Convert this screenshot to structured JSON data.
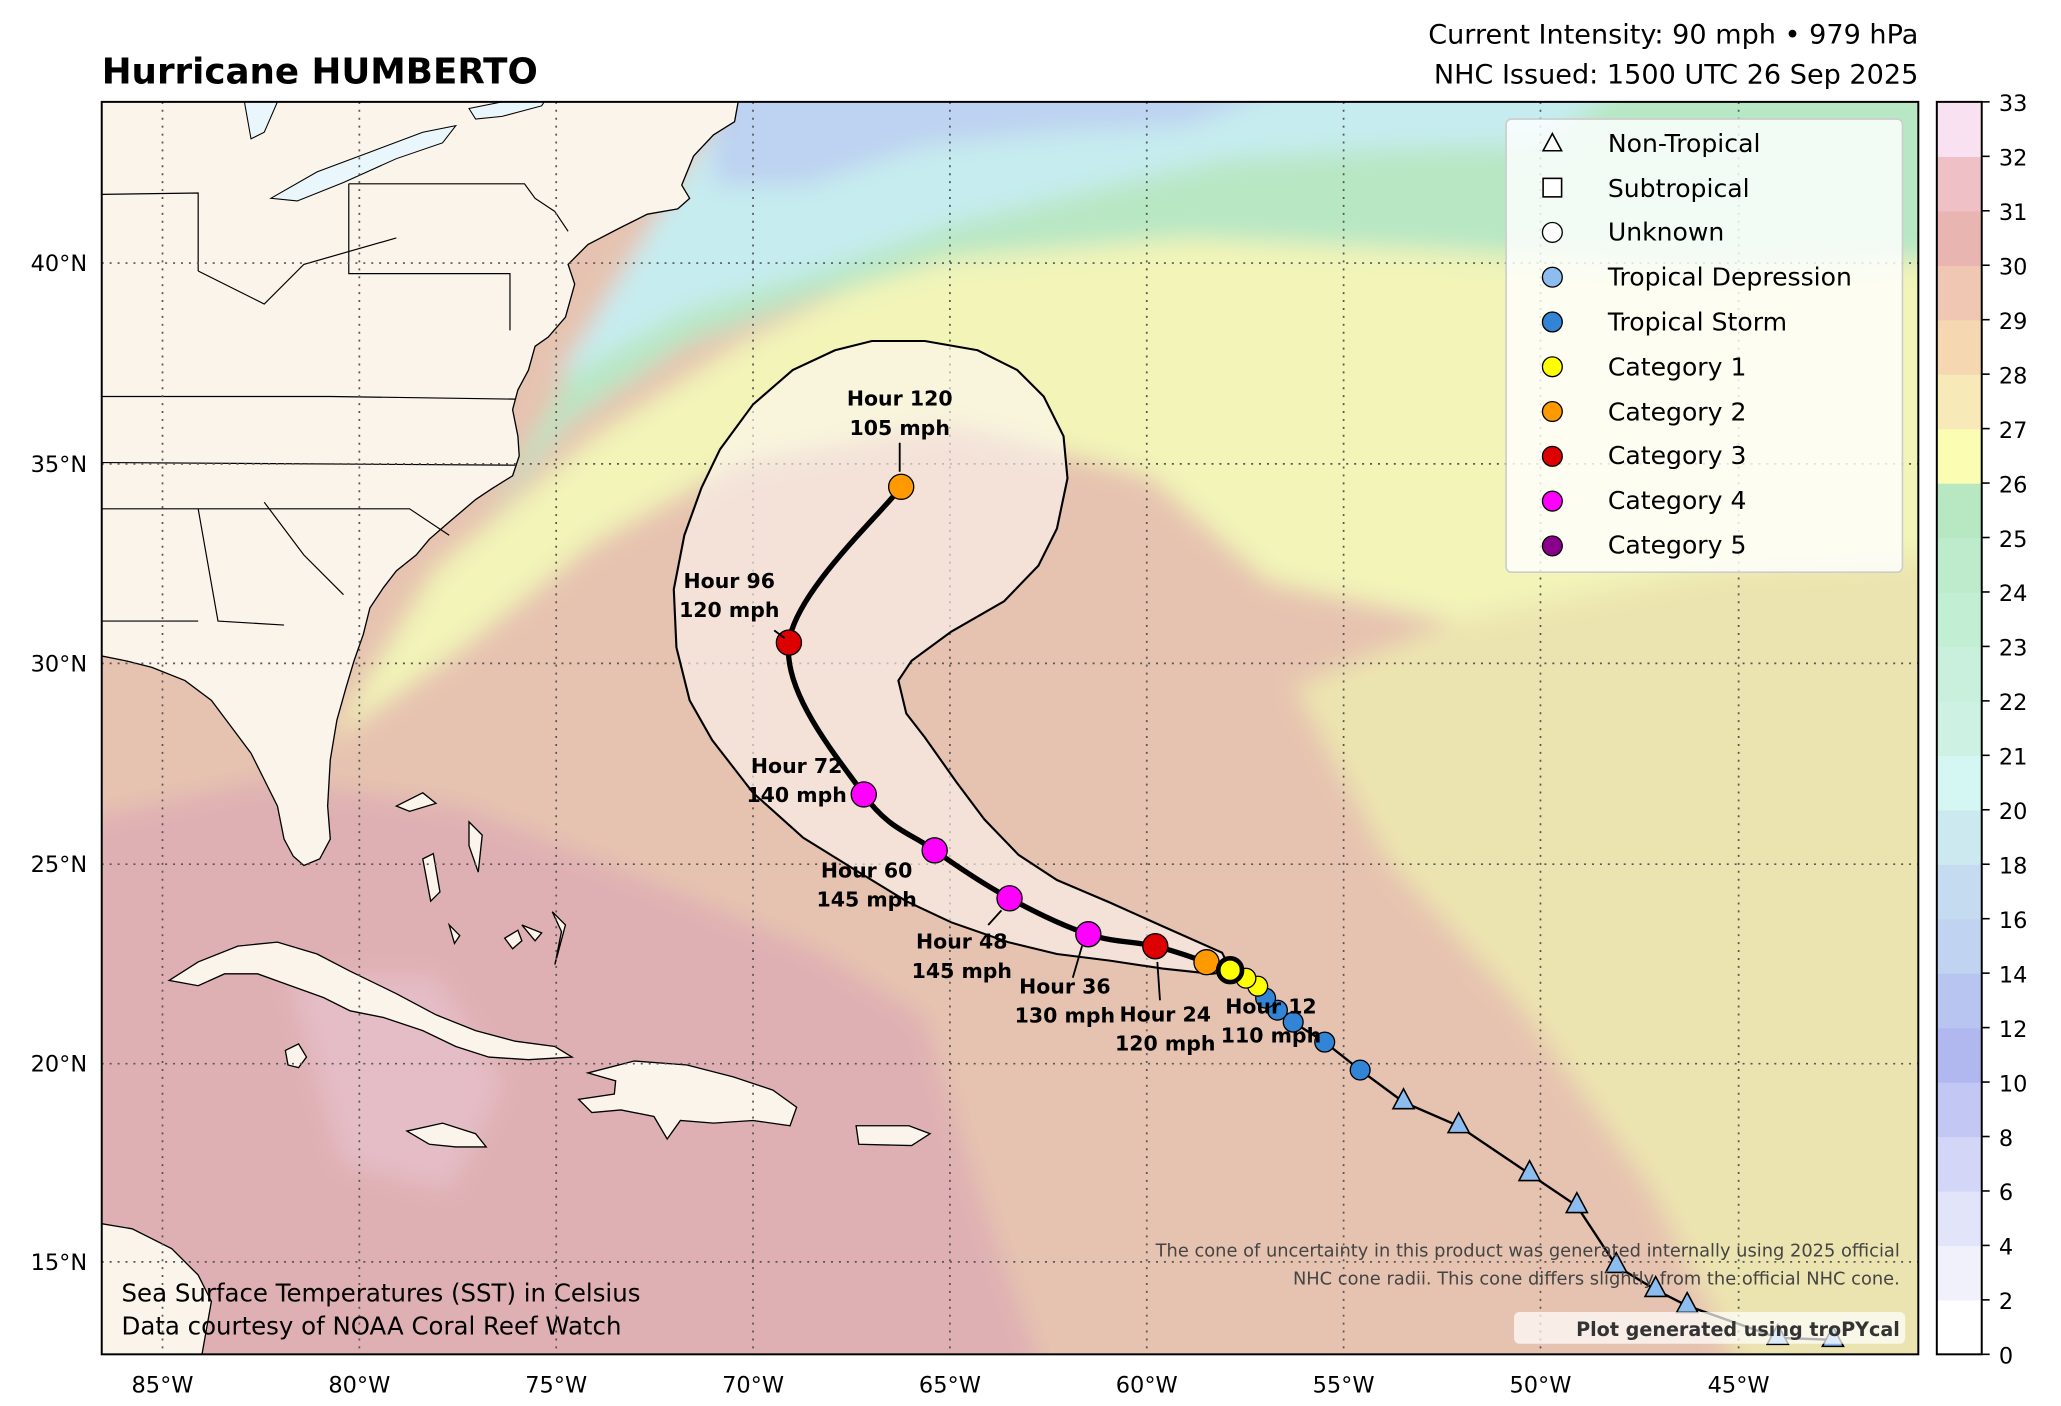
{
  "header": {
    "title": "Hurricane HUMBERTO",
    "intensity": "Current Intensity: 90 mph • 979 hPa",
    "issued": "NHC Issued: 1500 UTC 26 Sep 2025"
  },
  "map": {
    "extent": {
      "lon": [
        -86.5,
        -40.4
      ],
      "lat": [
        12.7,
        44.0
      ]
    },
    "lon_ticks": [
      "85°W",
      "80°W",
      "75°W",
      "70°W",
      "65°W",
      "60°W",
      "55°W",
      "50°W",
      "45°W"
    ],
    "lat_ticks": [
      "40°N",
      "35°N",
      "30°N",
      "25°N",
      "20°N",
      "15°N"
    ],
    "grid": true,
    "land_color": "#faf4ea"
  },
  "legend": {
    "placement": "top-right",
    "items": [
      {
        "label": "Non-Tropical",
        "marker": "triangle",
        "color": "#ffffff"
      },
      {
        "label": "Subtropical",
        "marker": "square",
        "color": "#ffffff"
      },
      {
        "label": "Unknown",
        "marker": "circle",
        "color": "#ffffff"
      },
      {
        "label": "Tropical Depression",
        "marker": "circle",
        "color": "#8dbdee"
      },
      {
        "label": "Tropical Storm",
        "marker": "circle",
        "color": "#3285d6"
      },
      {
        "label": "Category 1",
        "marker": "circle",
        "color": "#ffff00"
      },
      {
        "label": "Category 2",
        "marker": "circle",
        "color": "#ff9900"
      },
      {
        "label": "Category 3",
        "marker": "circle",
        "color": "#dd0000"
      },
      {
        "label": "Category 4",
        "marker": "circle",
        "color": "#ff00ff"
      },
      {
        "label": "Category 5",
        "marker": "circle",
        "color": "#8b008b"
      }
    ]
  },
  "colorbar": {
    "ticks": [
      "0",
      "2",
      "4",
      "6",
      "8",
      "10",
      "12",
      "14",
      "16",
      "18",
      "20",
      "21",
      "22",
      "23",
      "24",
      "25",
      "26",
      "27",
      "28",
      "29",
      "30",
      "31",
      "32",
      "33"
    ],
    "colors": [
      "#ffffff",
      "#f1f1fc",
      "#e2e4f9",
      "#d3d6f6",
      "#c2c7f3",
      "#b1b8ef",
      "#b8c5f0",
      "#c0d3f1",
      "#c5dcf0",
      "#cbe9ef",
      "#d5f7f3",
      "#cdf2e4",
      "#c8f0dc",
      "#c2eed3",
      "#bdebcb",
      "#b8e8c2",
      "#fbfdb2",
      "#f8e9b9",
      "#f5d8b1",
      "#f0c7b2",
      "#e9b5b0",
      "#efc1c7",
      "#f8e1f1"
    ]
  },
  "chart_data": {
    "type": "map-track",
    "current": {
      "lon": -57.9,
      "lat": 22.3,
      "category": "Category 1"
    },
    "past_track": [
      {
        "lon": -57.5,
        "lat": 22.1,
        "type": "Category 1"
      },
      {
        "lon": -57.2,
        "lat": 21.9,
        "type": "Category 1"
      },
      {
        "lon": -57.0,
        "lat": 21.6,
        "type": "Tropical Storm"
      },
      {
        "lon": -56.7,
        "lat": 21.3,
        "type": "Tropical Storm"
      },
      {
        "lon": -56.3,
        "lat": 21.0,
        "type": "Tropical Storm"
      },
      {
        "lon": -55.5,
        "lat": 20.5,
        "type": "Tropical Storm"
      },
      {
        "lon": -54.6,
        "lat": 19.8,
        "type": "Tropical Storm"
      },
      {
        "lon": -53.5,
        "lat": 19.0,
        "type": "Non-Tropical"
      },
      {
        "lon": -52.1,
        "lat": 18.4,
        "type": "Non-Tropical"
      },
      {
        "lon": -50.3,
        "lat": 17.2,
        "type": "Non-Tropical"
      },
      {
        "lon": -49.1,
        "lat": 16.4,
        "type": "Non-Tropical"
      },
      {
        "lon": -48.1,
        "lat": 14.9,
        "type": "Non-Tropical"
      },
      {
        "lon": -47.1,
        "lat": 14.3,
        "type": "Non-Tropical"
      },
      {
        "lon": -46.3,
        "lat": 13.9,
        "type": "Non-Tropical"
      },
      {
        "lon": -44.0,
        "lat": 13.1,
        "type": "Non-Tropical"
      },
      {
        "lon": -42.6,
        "lat": 13.05,
        "type": "Non-Tropical"
      }
    ],
    "forecast": [
      {
        "label": "Hour 12",
        "wind": "110 mph",
        "lon": -58.5,
        "lat": 22.5,
        "category": "Category 2"
      },
      {
        "label": "Hour 24",
        "wind": "120 mph",
        "lon": -59.8,
        "lat": 22.9,
        "category": "Category 3"
      },
      {
        "label": "Hour 36",
        "wind": "130 mph",
        "lon": -61.5,
        "lat": 23.2,
        "category": "Category 4"
      },
      {
        "label": "Hour 48",
        "wind": "145 mph",
        "lon": -63.5,
        "lat": 24.1,
        "category": "Category 4"
      },
      {
        "label": "Hour 60",
        "wind": "145 mph",
        "lon": -65.4,
        "lat": 25.3,
        "category": "Category 4"
      },
      {
        "label": "Hour 72",
        "wind": "140 mph",
        "lon": -67.2,
        "lat": 26.7,
        "category": "Category 4"
      },
      {
        "label": "Hour 96",
        "wind": "120 mph",
        "lon": -69.1,
        "lat": 30.5,
        "category": "Category 3"
      },
      {
        "label": "Hour 120",
        "wind": "105 mph",
        "lon": -66.25,
        "lat": 34.4,
        "category": "Category 2"
      }
    ]
  },
  "notes": {
    "sst_line1": "Sea Surface Temperatures (SST) in Celsius",
    "sst_line2": "Data courtesy of NOAA Coral Reef Watch",
    "cone_line1": "The cone of uncertainty in this product was generated internally using 2025 official",
    "cone_line2": "NHC cone radii. This cone differs slightly from the official NHC cone.",
    "credit": "Plot generated using troPYcal"
  }
}
